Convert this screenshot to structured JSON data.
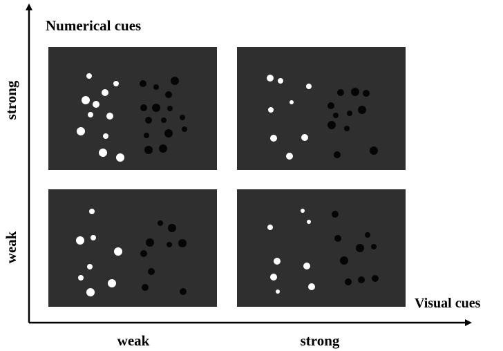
{
  "y_axis_title": "Numerical cues",
  "x_axis_title": "Visual cues",
  "row_labels": {
    "strong": "strong",
    "weak": "weak"
  },
  "col_labels": {
    "weak": "weak",
    "strong": "strong"
  },
  "colors": {
    "panel": "#2f2f2f",
    "white_dot": "#ffffff",
    "black_dot": "#050505",
    "axis": "#000000"
  },
  "panels": [
    {
      "name": "panel-numerical-strong-visual-weak",
      "white_dot_count": 12,
      "black_dot_count": 16
    },
    {
      "name": "panel-numerical-strong-visual-strong",
      "white_dot_count": 8,
      "black_dot_count": 12
    },
    {
      "name": "panel-numerical-weak-visual-weak",
      "white_dot_count": 9,
      "black_dot_count": 10
    },
    {
      "name": "panel-numerical-weak-visual-strong",
      "white_dot_count": 9,
      "black_dot_count": 11
    }
  ]
}
